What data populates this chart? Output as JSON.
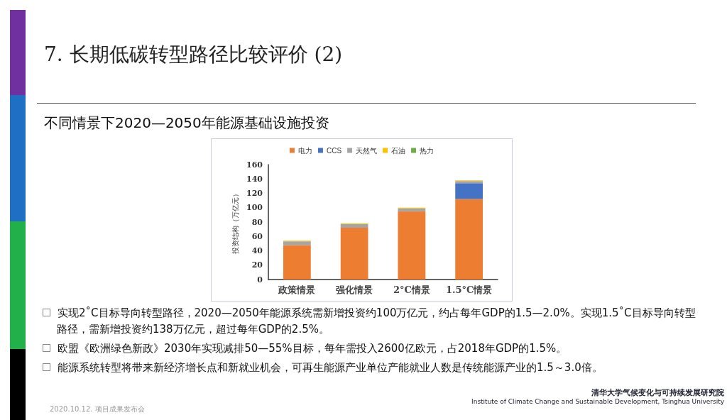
{
  "chart_data": {
    "type": "bar",
    "title": "7. 长期低碳转型路径比较评价 (2)",
    "subtitle": "不同情景下2020—2050年能源基础设施投资",
    "categories": [
      "政策情景",
      "强化情景",
      "2°C情景",
      "1.5°C情景"
    ],
    "series": [
      {
        "name": "电力",
        "color": "#ed7d31",
        "values": [
          48,
          72,
          95,
          112
        ]
      },
      {
        "name": "CCS",
        "color": "#4472c4",
        "values": [
          0,
          0,
          0,
          22
        ]
      },
      {
        "name": "天然气",
        "color": "#a5a5a5",
        "values": [
          5,
          5,
          4,
          3
        ]
      },
      {
        "name": "石油",
        "color": "#ffc000",
        "values": [
          1,
          1,
          1,
          1
        ]
      },
      {
        "name": "热力",
        "color": "#70ad47",
        "values": [
          0,
          0,
          0,
          0
        ]
      }
    ],
    "stacked": true,
    "ylabel": "投资结构（万亿元）",
    "ylim": [
      0,
      160
    ],
    "yticks": [
      0,
      20,
      40,
      60,
      80,
      100,
      120,
      140,
      160
    ],
    "grid": false,
    "legend": "top",
    "annotations": [
      "实现2˚C目标导向转型路径，2020—2050年能源系统需新增投资约100万亿元，约占每年GDP的1.5—2.0%。实现1.5˚C目标导向转型路径，需新增投资约138万亿元，超过每年GDP的2.5%。",
      "欧盟《欧洲绿色新政》2030年实现减排50—55%目标，每年需投入2600亿欧元，占2018年GDP的1.5%。",
      "能源系统转型将带来新经济增长点和新就业机会，可再生能源产业单位产能就业人数是传统能源产业的1.5～3.0倍。",
      "2020.10.12. 项目成果发布会",
      "清华大学气候变化与可持续发展研究院",
      "Institute of Climate Change and Sustainable Development, Tsinghua University"
    ]
  }
}
